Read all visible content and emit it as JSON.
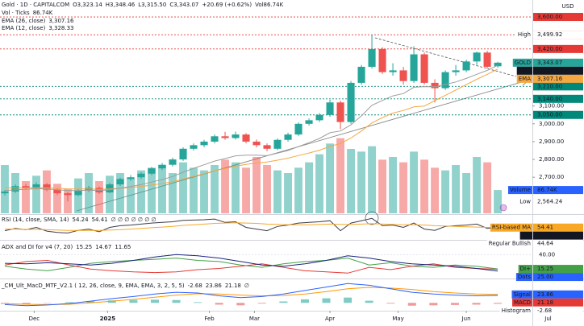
{
  "chart_data": [
    {
      "type": "candlestick",
      "title": "Gold · 1D · CAPITALCOM",
      "header": [
        "O3,323.14",
        "H3,348.46",
        "L3,315.50",
        "C3,343.07",
        "+20.69 (+0.62%)",
        "Vol86.74K"
      ],
      "y_unit": "USD",
      "up_color": "#26a69a",
      "down_color": "#ef5350",
      "open": [
        2610,
        2620,
        2650,
        2640,
        2660,
        2630,
        2610,
        2600,
        2625,
        2640,
        2615,
        2660,
        2690,
        2700,
        2720,
        2750,
        2770,
        2800,
        2860,
        2880,
        2900,
        2930,
        2920,
        2940,
        2900,
        2880,
        2860,
        2910,
        2940,
        3000,
        3020,
        3050,
        3120,
        3010,
        3230,
        3320,
        3420,
        3290,
        3300,
        3240,
        3390,
        3230,
        3200,
        3290,
        3300,
        3350,
        3400,
        3323.14
      ],
      "high": [
        2628,
        2660,
        2662,
        2672,
        2668,
        2640,
        2618,
        2634,
        2652,
        2648,
        2668,
        2698,
        2712,
        2728,
        2758,
        2780,
        2810,
        2868,
        2890,
        2910,
        2940,
        2955,
        2956,
        2948,
        2912,
        2890,
        2918,
        2950,
        3008,
        3030,
        3060,
        3135,
        3130,
        3240,
        3330,
        3499.92,
        3430,
        3340,
        3320,
        3435,
        3400,
        3250,
        3300,
        3330,
        3360,
        3405,
        3410,
        3348.46
      ],
      "low": [
        2598,
        2612,
        2630,
        2632,
        2622,
        2600,
        2564.24,
        2594,
        2618,
        2606,
        2610,
        2652,
        2680,
        2690,
        2712,
        2740,
        2760,
        2792,
        2850,
        2868,
        2890,
        2910,
        2912,
        2890,
        2868,
        2846,
        2852,
        2900,
        2932,
        2990,
        3010,
        3040,
        2970,
        3000,
        3220,
        3310,
        3280,
        3270,
        3220,
        3230,
        3220,
        3120,
        3190,
        3270,
        3290,
        3330,
        3310,
        3315.5
      ],
      "close": [
        2620,
        2650,
        2640,
        2660,
        2630,
        2610,
        2600,
        2625,
        2640,
        2615,
        2660,
        2690,
        2700,
        2720,
        2750,
        2770,
        2800,
        2860,
        2880,
        2900,
        2930,
        2920,
        2940,
        2900,
        2880,
        2860,
        2910,
        2940,
        3000,
        3020,
        3050,
        3120,
        3010,
        3230,
        3320,
        3420,
        3290,
        3300,
        3240,
        3390,
        3230,
        3200,
        3290,
        3300,
        3350,
        3400,
        3320,
        3343.07
      ],
      "series": [
        {
          "name": "EMA (26, close)",
          "color": "#f5a742",
          "value_label": "3,307.16",
          "values": [
            2640,
            2640,
            2640,
            2641,
            2640,
            2638,
            2635,
            2634,
            2634,
            2632,
            2634,
            2638,
            2642,
            2648,
            2656,
            2665,
            2675,
            2690,
            2705,
            2720,
            2736,
            2749,
            2762,
            2772,
            2780,
            2786,
            2796,
            2807,
            2822,
            2836,
            2852,
            2873,
            2890,
            2920,
            2960,
            3005,
            3035,
            3060,
            3075,
            3095,
            3100,
            3130,
            3160,
            3190,
            3220,
            3250,
            3278,
            3307.16
          ]
        },
        {
          "name": "EMA (12, close)",
          "color": "#9e9e9e",
          "value_label": "3,328.33",
          "values": [
            2625,
            2630,
            2632,
            2636,
            2634,
            2630,
            2625,
            2625,
            2627,
            2625,
            2630,
            2639,
            2648,
            2659,
            2673,
            2687,
            2704,
            2728,
            2750,
            2770,
            2791,
            2805,
            2820,
            2824,
            2824,
            2821,
            2835,
            2850,
            2872,
            2894,
            2918,
            2950,
            2960,
            2994,
            3045,
            3104,
            3131,
            3157,
            3170,
            3205,
            3209,
            3208,
            3221,
            3235,
            3255,
            3278,
            3300,
            3328.33
          ]
        }
      ],
      "ylim": [
        2475,
        3695
      ],
      "yticks": [
        {
          "value": 3100,
          "label": "3,100.00"
        },
        {
          "value": 3000,
          "label": "3,000.00"
        },
        {
          "value": 2900,
          "label": "2,900.00"
        },
        {
          "value": 2800,
          "label": "2,800.00"
        },
        {
          "value": 2700,
          "label": "2,700.00"
        }
      ],
      "xlim": [
        -0.46,
        50.3
      ],
      "xticks": [
        {
          "value": 2.8,
          "label": "Dec"
        },
        {
          "value": 9.8,
          "label": "2025"
        },
        {
          "value": 19.5,
          "label": "Feb"
        },
        {
          "value": 23.8,
          "label": "Mar"
        },
        {
          "value": 31,
          "label": "Apr"
        },
        {
          "value": 37.5,
          "label": "May"
        },
        {
          "value": 44,
          "label": "Jun"
        },
        {
          "value": 51.8,
          "label": "Jul"
        }
      ],
      "levels": [
        {
          "value": 3600,
          "label": "3,600.00",
          "color": "#e53935"
        },
        {
          "value": 3500,
          "label": "3,500.00",
          "color": "#e53935"
        },
        {
          "value": 3420,
          "label": "3,420.00",
          "color": "#e53935"
        },
        {
          "value": 3210,
          "label": "3,210.00",
          "color": "#00897b"
        },
        {
          "value": 3140,
          "label": "3,140.00",
          "color": "#00897b"
        },
        {
          "value": 3050,
          "label": "3,050.00",
          "color": "#00897b"
        }
      ],
      "tags": [
        {
          "name": "High",
          "value": 3499.92,
          "label": "3,499.92",
          "color": "#ffffff"
        },
        {
          "name": "GOLD",
          "value": 3343.07,
          "label": "3,343.07",
          "color": "#26a69a"
        },
        {
          "name": "EMA",
          "value": 3328.33,
          "label": "3,328.33",
          "color": "#131722"
        },
        {
          "name": "EMA",
          "value": 3307.16,
          "label": "3,307.16",
          "color": "#f5a742"
        },
        {
          "name": "Low",
          "value": 2564.24,
          "label": "2,564.24",
          "color": "#ffffff"
        }
      ]
    },
    {
      "type": "bar",
      "title": "Vol · Ticks",
      "value_label": "86.74K",
      "ylim": [
        0,
        300
      ],
      "values": [
        180,
        150,
        120,
        140,
        160,
        110,
        90,
        130,
        150,
        120,
        140,
        150,
        130,
        160,
        170,
        180,
        150,
        190,
        170,
        160,
        180,
        200,
        190,
        170,
        210,
        180,
        160,
        150,
        170,
        190,
        220,
        260,
        280,
        240,
        230,
        250,
        200,
        210,
        190,
        230,
        200,
        170,
        160,
        180,
        150,
        210,
        190,
        86.74
      ],
      "tags": [
        {
          "name": "Volume",
          "value": 86.74,
          "label": "86.74K",
          "color": "#2962ff"
        }
      ]
    },
    {
      "type": "line",
      "title": "RSI (14, close, SMA, 14)",
      "header_extra": "∅ ∅ ∅ ∅ ∅ ∅ ∅",
      "ylim": [
        20,
        90
      ],
      "series": [
        {
          "name": "RSI",
          "color": "#3b3b4a",
          "value_label": "54.24",
          "values": [
            45,
            52,
            48,
            55,
            44,
            40,
            38,
            46,
            50,
            42,
            55,
            60,
            62,
            65,
            68,
            70,
            72,
            76,
            77,
            78,
            80,
            70,
            72,
            55,
            50,
            45,
            58,
            62,
            68,
            70,
            72,
            75,
            45,
            68,
            75,
            82,
            60,
            62,
            55,
            68,
            50,
            46,
            58,
            60,
            62,
            65,
            52,
            54.24
          ]
        },
        {
          "name": "RSI-based MA",
          "color": "#f9a825",
          "value_label": "54.41",
          "values": [
            50,
            50,
            49,
            49,
            48,
            47,
            46,
            46,
            46,
            46,
            47,
            48,
            50,
            52,
            54,
            56,
            58,
            61,
            63,
            65,
            67,
            68,
            69,
            68,
            67,
            65,
            64,
            63,
            63,
            63,
            64,
            65,
            64,
            64,
            65,
            66,
            65,
            64,
            63,
            63,
            62,
            60,
            59,
            58,
            57,
            56,
            55,
            54.41
          ]
        }
      ],
      "tags": [
        {
          "name": "RSI-based MA",
          "value": 54.41,
          "label": "54.41",
          "color": "#f9a825"
        },
        {
          "name": "RSI",
          "value": 54.24,
          "label": "54.24",
          "color": "#131722"
        },
        {
          "name": "Regular Bullish",
          "value": 44.64,
          "label": "44.64",
          "color": "#ffffff"
        }
      ]
    },
    {
      "type": "line",
      "title": "ADX and DI for v4 (7, 20)",
      "ylim": [
        0,
        60
      ],
      "yticks": [
        {
          "value": 40,
          "label": "40.00"
        }
      ],
      "series": [
        {
          "name": "DI+",
          "color": "#43a047",
          "value_label": "15.25",
          "values": [
            20,
            15,
            12,
            18,
            25,
            28,
            30,
            32,
            34,
            30,
            28,
            22,
            18,
            24,
            28,
            30,
            34,
            22,
            26,
            20,
            18,
            22,
            20,
            15.25
          ]
        },
        {
          "name": "DI-",
          "color": "#e53935",
          "value_label": "14.67",
          "values": [
            22,
            28,
            30,
            22,
            15,
            12,
            10,
            9,
            10,
            14,
            16,
            20,
            24,
            18,
            12,
            10,
            8,
            18,
            14,
            20,
            24,
            18,
            16,
            14.67
          ]
        },
        {
          "name": "ADX",
          "color": "#1a237e",
          "value_label": "11.65",
          "values": [
            25,
            24,
            26,
            24,
            22,
            25,
            30,
            36,
            40,
            38,
            34,
            28,
            22,
            20,
            24,
            30,
            38,
            34,
            28,
            24,
            22,
            20,
            16,
            11.65
          ]
        }
      ],
      "tags": [
        {
          "name": "DI+",
          "value": 15.25,
          "label": "15.25",
          "color": "#43a047"
        },
        {
          "name": "Dots",
          "value": 25,
          "label": "25.00",
          "color": "#2962ff"
        }
      ]
    },
    {
      "type": "line",
      "title": "_CM_Ult_MacD_MTF_V2.1 ( 12, 26, close, 9, EMA, EMA, 3, 2, 5, 5)",
      "header_extra": "∅",
      "ylim": [
        -20,
        60
      ],
      "series": [
        {
          "name": "Histogram",
          "style": "histogram",
          "color": "#80cbc4",
          "down_color": "#ef9a9a",
          "value_label": "-2.68",
          "values": [
            -3,
            -4,
            -1,
            2,
            5,
            7,
            8,
            9,
            8,
            2,
            -5,
            -7,
            -2,
            4,
            10,
            13,
            15,
            6,
            -2,
            -8,
            -7,
            -6,
            -5,
            -2.68
          ]
        },
        {
          "name": "Signal",
          "color": "#ff9800",
          "value_label": "23.86",
          "values": [
            -2,
            -4,
            -5,
            -4,
            0,
            5,
            10,
            16,
            22,
            26,
            25,
            22,
            20,
            21,
            25,
            32,
            40,
            44,
            42,
            38,
            32,
            28,
            25,
            23.86
          ]
        },
        {
          "name": "MACD",
          "color": "#2962ff",
          "value_label": "21.18",
          "values": [
            -5,
            -8,
            -6,
            -2,
            5,
            12,
            18,
            25,
            30,
            28,
            20,
            15,
            18,
            25,
            35,
            45,
            55,
            50,
            40,
            30,
            25,
            22,
            20,
            21.18
          ]
        }
      ],
      "tags": [
        {
          "name": "Signal",
          "value": 23.86,
          "label": "23.86",
          "color": "#2962ff"
        },
        {
          "name": "MACD",
          "value": 21.18,
          "label": "21.18",
          "color": "#e53935"
        },
        {
          "name": "Histogram",
          "value": -2.68,
          "label": "-2.68",
          "color": "#ffffff"
        }
      ]
    }
  ]
}
